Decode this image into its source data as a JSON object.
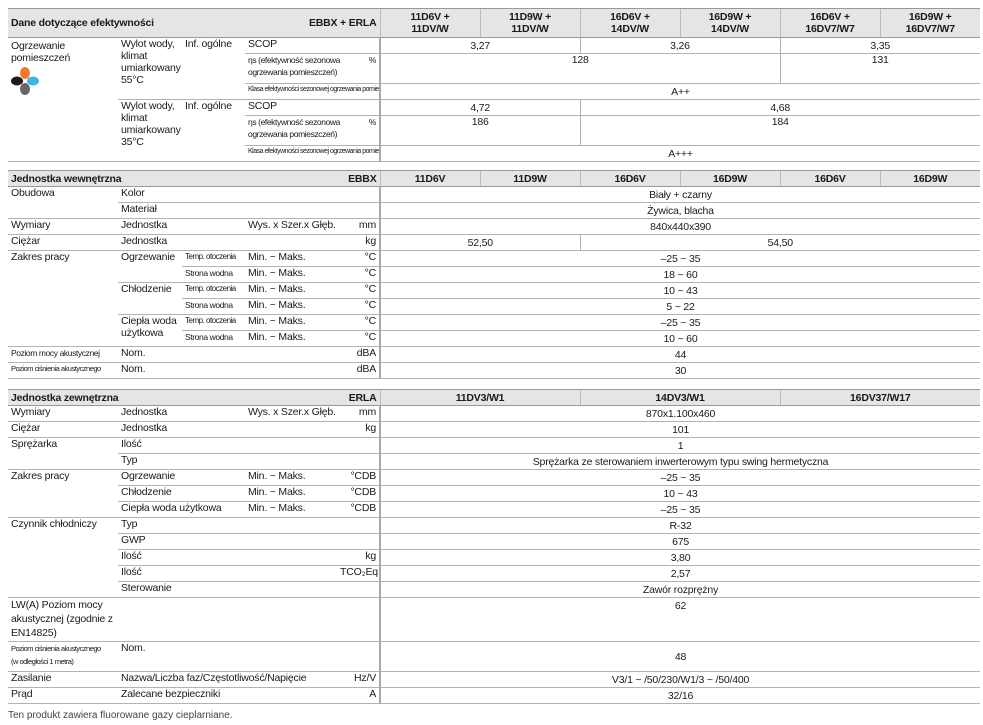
{
  "performance": {
    "title": "Dane dotyczące efektywności",
    "combo": "EBBX + ERLA",
    "models": [
      "11D6V +\n11DV/W",
      "11D9W +\n11DV/W",
      "16D6V +\n14DV/W",
      "16D9W +\n14DV/W",
      "16D6V +\n16DV7/W7",
      "16D9W +\n16DV7/W7"
    ],
    "category": "Ogrzewanie pomieszczeń",
    "category_icon": "space-heating-icon",
    "info": "Inf. ogólne",
    "scop_label": "SCOP",
    "eta_label": "ηs (efektywność sezonowa ogrzewania pomieszczeń)",
    "eta_unit": "%",
    "class_label": "Klasa efektywności sezonowej ogrzewania pomieszczeń",
    "climates": [
      {
        "label": "Wylot wody, klimat umiarkowany 55°C",
        "scop": [
          "3,27",
          "3,26",
          "3,35"
        ],
        "eta": [
          "128",
          "131"
        ],
        "class": "A++"
      },
      {
        "label": "Wylot wody, klimat umiarkowany 35°C",
        "scop": [
          "4,72",
          "4,68"
        ],
        "eta": [
          "186",
          "184"
        ],
        "class": "A+++"
      }
    ]
  },
  "indoor": {
    "title": "Jednostka wewnętrzna",
    "code": "EBBX",
    "models": [
      "11D6V",
      "11D9W",
      "16D6V",
      "16D9W",
      "16D6V",
      "16D9W"
    ],
    "casing": {
      "label": "Obudowa",
      "color_label": "Kolor",
      "color": "Biały + czarny",
      "material_label": "Materiał",
      "material": "Żywica, blacha"
    },
    "dimensions": {
      "label": "Wymiary",
      "sub": "Jednostka",
      "dims": "Wys. x Szer.x Głęb.",
      "unit": "mm",
      "value": "840x440x390"
    },
    "weight": {
      "label": "Ciężar",
      "sub": "Jednostka",
      "unit": "kg",
      "values": [
        "52,50",
        "54,50"
      ]
    },
    "range": {
      "label": "Zakres pracy",
      "minmax": "Min. ~ Maks.",
      "unit": "°C",
      "ambient": "Temp. otoczenia",
      "water": "Strona wodna",
      "heating": {
        "label": "Ogrzewanie",
        "ambient": "–25 ~ 35",
        "water": "18 ~ 60"
      },
      "cooling": {
        "label": "Chłodzenie",
        "ambient": "10 ~ 43",
        "water": "5 ~ 22"
      },
      "dhw": {
        "label": "Ciepła woda użytkowa",
        "ambient": "–25 ~ 35",
        "water": "10 ~ 60"
      }
    },
    "sound_power": {
      "label": "Poziom mocy akustycznej",
      "sub": "Nom.",
      "unit": "dBA",
      "value": "44"
    },
    "sound_pressure": {
      "label": "Poziom ciśnienia akustycznego",
      "sub": "Nom.",
      "unit": "dBA",
      "value": "30"
    }
  },
  "outdoor": {
    "title": "Jednostka zewnętrzna",
    "code": "ERLA",
    "models": [
      "11DV3/W1",
      "14DV3/W1",
      "16DV37/W17"
    ],
    "dimensions": {
      "label": "Wymiary",
      "sub": "Jednostka",
      "dims": "Wys. x Szer.x Głęb.",
      "unit": "mm",
      "value": "870x1.100x460"
    },
    "weight": {
      "label": "Ciężar",
      "sub": "Jednostka",
      "unit": "kg",
      "value": "101"
    },
    "compressor": {
      "label": "Sprężarka",
      "qty_label": "Ilość",
      "qty": "1",
      "type_label": "Typ",
      "type": "Sprężarka ze sterowaniem inwerterowym typu swing hermetyczna"
    },
    "range": {
      "label": "Zakres pracy",
      "minmax": "Min. ~ Maks.",
      "unit": "°CDB",
      "heating": {
        "label": "Ogrzewanie",
        "value": "–25 ~ 35"
      },
      "cooling": {
        "label": "Chłodzenie",
        "value": "10 ~ 43"
      },
      "dhw": {
        "label": "Ciepła woda użytkowa",
        "value": "–25 ~ 35"
      }
    },
    "refrigerant": {
      "label": "Czynnik chłodniczy",
      "type_label": "Typ",
      "type": "R-32",
      "gwp_label": "GWP",
      "gwp": "675",
      "charge_label": "Ilość",
      "charge_unit": "kg",
      "charge": "3,80",
      "co2_label": "Ilość",
      "co2_unit": "TCO₂Eq",
      "co2": "2,57",
      "control_label": "Sterowanie",
      "control": "Zawór rozprężny"
    },
    "sound_power": {
      "label": "LW(A) Poziom mocy akustycznej (zgodnie z EN14825)",
      "value": "62"
    },
    "sound_pressure": {
      "label": "Poziom ciśnienia akustycznego",
      "label2": "(w odległości 1 metra)",
      "sub": "Nom.",
      "value": "48"
    },
    "power_supply": {
      "label": "Zasilanie",
      "sub": "Nazwa/Liczba faz/Częstotliwość/Napięcie",
      "unit": "Hz/V",
      "value": "V3/1 ~ /50/230/W1/3 ~ /50/400"
    },
    "current": {
      "label": "Prąd",
      "sub": "Zalecane bezpieczniki",
      "unit": "A",
      "value": "32/16"
    }
  },
  "footnote": "Ten produkt zawiera fluorowane gazy cieplarniane."
}
